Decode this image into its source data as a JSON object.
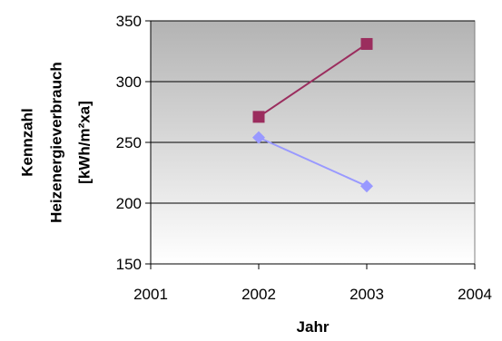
{
  "chart_data": {
    "type": "line",
    "title": "",
    "xlabel": "Jahr",
    "ylabel_lines": [
      "Kennzahl",
      "Heizenergieverbrauch",
      "[kWh/m²xa]"
    ],
    "xlim": [
      2001,
      2004
    ],
    "ylim": [
      150,
      350
    ],
    "x_ticks": [
      2001,
      2002,
      2003,
      2004
    ],
    "x_tick_labels": [
      "2001",
      "2002",
      "2003",
      "2004"
    ],
    "y_ticks": [
      150,
      200,
      250,
      300,
      350
    ],
    "y_tick_labels": [
      "150",
      "200",
      "250",
      "300",
      "350"
    ],
    "grid": "horizontal",
    "legend": "none",
    "series": [
      {
        "marker": "square",
        "color": "#9b2d5e",
        "points": [
          {
            "x": 2002,
            "y": 271
          },
          {
            "x": 2003,
            "y": 331
          }
        ]
      },
      {
        "marker": "diamond",
        "color": "#9999ff",
        "points": [
          {
            "x": 2002,
            "y": 254
          },
          {
            "x": 2003,
            "y": 214
          }
        ]
      }
    ],
    "plot_background_gradient": [
      "#b3b3b3",
      "#ffffff"
    ]
  }
}
